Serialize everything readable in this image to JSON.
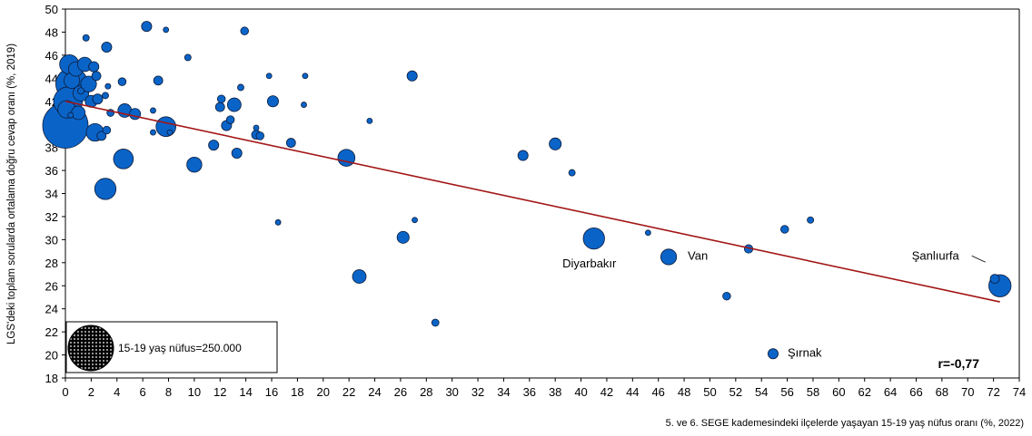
{
  "chart_data": {
    "type": "scatter",
    "subtype": "bubble",
    "xlabel": "5. ve 6. SEGE kademesindeki ilçelerde yaşayan 15-19 yaş nüfus oranı (%, 2022)",
    "ylabel": "LGS'deki toplam sorularda ortalama doğru cevap oranı (%, 2019)",
    "xlim": [
      0,
      74
    ],
    "ylim": [
      18,
      50
    ],
    "x_ticks": [
      "0",
      "2",
      "4",
      "6",
      "8",
      "10",
      "12",
      "14",
      "16",
      "18",
      "20",
      "22",
      "24",
      "26",
      "28",
      "30",
      "32",
      "34",
      "36",
      "38",
      "40",
      "42",
      "44",
      "46",
      "48",
      "50",
      "52",
      "54",
      "56",
      "58",
      "60",
      "62",
      "64",
      "66",
      "68",
      "70",
      "72",
      "74"
    ],
    "y_ticks": [
      "18",
      "20",
      "22",
      "24",
      "26",
      "28",
      "30",
      "32",
      "34",
      "36",
      "38",
      "40",
      "42",
      "44",
      "46",
      "48",
      "50"
    ],
    "grid": false,
    "colors": {
      "bubble_fill": "#0a64c8",
      "bubble_stroke": "#0d1b3a",
      "trend": "#a31515"
    },
    "trendline": {
      "x": [
        0,
        72.5
      ],
      "y": [
        42.0,
        24.6
      ]
    },
    "correlation_label": "r=-0,77",
    "legend": {
      "label": "15-19 yaş nüfus=250.000",
      "placement": "bottom-left",
      "reference_population": 250000
    },
    "annotations": [
      {
        "label": "Diyarbakır",
        "x": 41.0,
        "y": 30.1
      },
      {
        "label": "Van",
        "x": 46.8,
        "y": 28.5
      },
      {
        "label": "Şanlıurfa",
        "x": 72.5,
        "y": 26.0
      },
      {
        "label": "Şırnak",
        "x": 54.9,
        "y": 20.1
      }
    ],
    "points": [
      {
        "x": 0.0,
        "y": 39.9,
        "size": 1.0
      },
      {
        "x": 0.5,
        "y": 43.5,
        "size": 0.5
      },
      {
        "x": 0.2,
        "y": 42.0,
        "size": 0.4
      },
      {
        "x": 0.3,
        "y": 45.2,
        "size": 0.18
      },
      {
        "x": 0.1,
        "y": 41.3,
        "size": 0.15
      },
      {
        "x": 0.5,
        "y": 43.8,
        "size": 0.12
      },
      {
        "x": 1.2,
        "y": 42.7,
        "size": 0.12
      },
      {
        "x": 0.8,
        "y": 44.8,
        "size": 0.1
      },
      {
        "x": 1.5,
        "y": 45.2,
        "size": 0.1
      },
      {
        "x": 1.8,
        "y": 43.5,
        "size": 0.12
      },
      {
        "x": 1.0,
        "y": 41.0,
        "size": 0.09
      },
      {
        "x": 2.0,
        "y": 42.0,
        "size": 0.07
      },
      {
        "x": 2.2,
        "y": 45.0,
        "size": 0.05
      },
      {
        "x": 2.4,
        "y": 44.2,
        "size": 0.04
      },
      {
        "x": 2.5,
        "y": 42.2,
        "size": 0.05
      },
      {
        "x": 2.3,
        "y": 39.3,
        "size": 0.15
      },
      {
        "x": 2.8,
        "y": 39.0,
        "size": 0.04
      },
      {
        "x": 1.6,
        "y": 47.5,
        "size": 0.02
      },
      {
        "x": 3.2,
        "y": 46.7,
        "size": 0.05
      },
      {
        "x": 3.1,
        "y": 42.5,
        "size": 0.02
      },
      {
        "x": 3.3,
        "y": 43.3,
        "size": 0.015
      },
      {
        "x": 3.2,
        "y": 39.5,
        "size": 0.03
      },
      {
        "x": 3.5,
        "y": 41.0,
        "size": 0.025
      },
      {
        "x": 1.2,
        "y": 42.9,
        "size": 0.02
      },
      {
        "x": 0.4,
        "y": 40.8,
        "size": 0.015
      },
      {
        "x": 3.1,
        "y": 34.4,
        "size": 0.22
      },
      {
        "x": 4.4,
        "y": 43.7,
        "size": 0.03
      },
      {
        "x": 4.6,
        "y": 41.2,
        "size": 0.09
      },
      {
        "x": 4.5,
        "y": 37.0,
        "size": 0.19
      },
      {
        "x": 5.4,
        "y": 40.9,
        "size": 0.06
      },
      {
        "x": 6.3,
        "y": 48.5,
        "size": 0.05
      },
      {
        "x": 6.8,
        "y": 41.2,
        "size": 0.015
      },
      {
        "x": 6.8,
        "y": 39.3,
        "size": 0.015
      },
      {
        "x": 7.2,
        "y": 43.8,
        "size": 0.04
      },
      {
        "x": 7.8,
        "y": 48.2,
        "size": 0.003
      },
      {
        "x": 7.8,
        "y": 39.8,
        "size": 0.19
      },
      {
        "x": 8.1,
        "y": 39.3,
        "size": 0.01
      },
      {
        "x": 9.5,
        "y": 45.8,
        "size": 0.02
      },
      {
        "x": 10.0,
        "y": 36.5,
        "size": 0.11
      },
      {
        "x": 11.5,
        "y": 38.2,
        "size": 0.05
      },
      {
        "x": 12.0,
        "y": 41.5,
        "size": 0.04
      },
      {
        "x": 12.1,
        "y": 42.2,
        "size": 0.03
      },
      {
        "x": 12.5,
        "y": 39.9,
        "size": 0.05
      },
      {
        "x": 12.8,
        "y": 40.4,
        "size": 0.03
      },
      {
        "x": 13.1,
        "y": 41.7,
        "size": 0.09
      },
      {
        "x": 13.3,
        "y": 37.5,
        "size": 0.05
      },
      {
        "x": 13.6,
        "y": 43.2,
        "size": 0.02
      },
      {
        "x": 13.9,
        "y": 48.1,
        "size": 0.03
      },
      {
        "x": 14.8,
        "y": 39.7,
        "size": 0.01
      },
      {
        "x": 14.8,
        "y": 39.1,
        "size": 0.04
      },
      {
        "x": 15.1,
        "y": 39.0,
        "size": 0.03
      },
      {
        "x": 15.8,
        "y": 44.2,
        "size": 0.01
      },
      {
        "x": 16.1,
        "y": 42.0,
        "size": 0.06
      },
      {
        "x": 16.5,
        "y": 31.5,
        "size": 0.013
      },
      {
        "x": 17.5,
        "y": 38.4,
        "size": 0.04
      },
      {
        "x": 18.6,
        "y": 44.2,
        "size": 0.013
      },
      {
        "x": 18.5,
        "y": 41.7,
        "size": 0.01
      },
      {
        "x": 21.8,
        "y": 37.1,
        "size": 0.14
      },
      {
        "x": 22.8,
        "y": 26.8,
        "size": 0.09
      },
      {
        "x": 23.6,
        "y": 40.3,
        "size": 0.009
      },
      {
        "x": 26.2,
        "y": 30.2,
        "size": 0.07
      },
      {
        "x": 26.9,
        "y": 44.2,
        "size": 0.05
      },
      {
        "x": 27.1,
        "y": 31.7,
        "size": 0.013
      },
      {
        "x": 28.7,
        "y": 22.8,
        "size": 0.025
      },
      {
        "x": 35.5,
        "y": 37.3,
        "size": 0.05
      },
      {
        "x": 38.0,
        "y": 38.3,
        "size": 0.07
      },
      {
        "x": 39.3,
        "y": 35.8,
        "size": 0.02
      },
      {
        "x": 41.0,
        "y": 30.1,
        "size": 0.22
      },
      {
        "x": 45.2,
        "y": 30.6,
        "size": 0.006
      },
      {
        "x": 46.8,
        "y": 28.5,
        "size": 0.12
      },
      {
        "x": 51.3,
        "y": 25.1,
        "size": 0.03
      },
      {
        "x": 53.0,
        "y": 29.2,
        "size": 0.035
      },
      {
        "x": 54.9,
        "y": 20.1,
        "size": 0.05
      },
      {
        "x": 55.8,
        "y": 30.9,
        "size": 0.03
      },
      {
        "x": 57.8,
        "y": 31.7,
        "size": 0.02
      },
      {
        "x": 72.5,
        "y": 26.0,
        "size": 0.24
      },
      {
        "x": 72.1,
        "y": 26.6,
        "size": 0.04
      }
    ]
  }
}
